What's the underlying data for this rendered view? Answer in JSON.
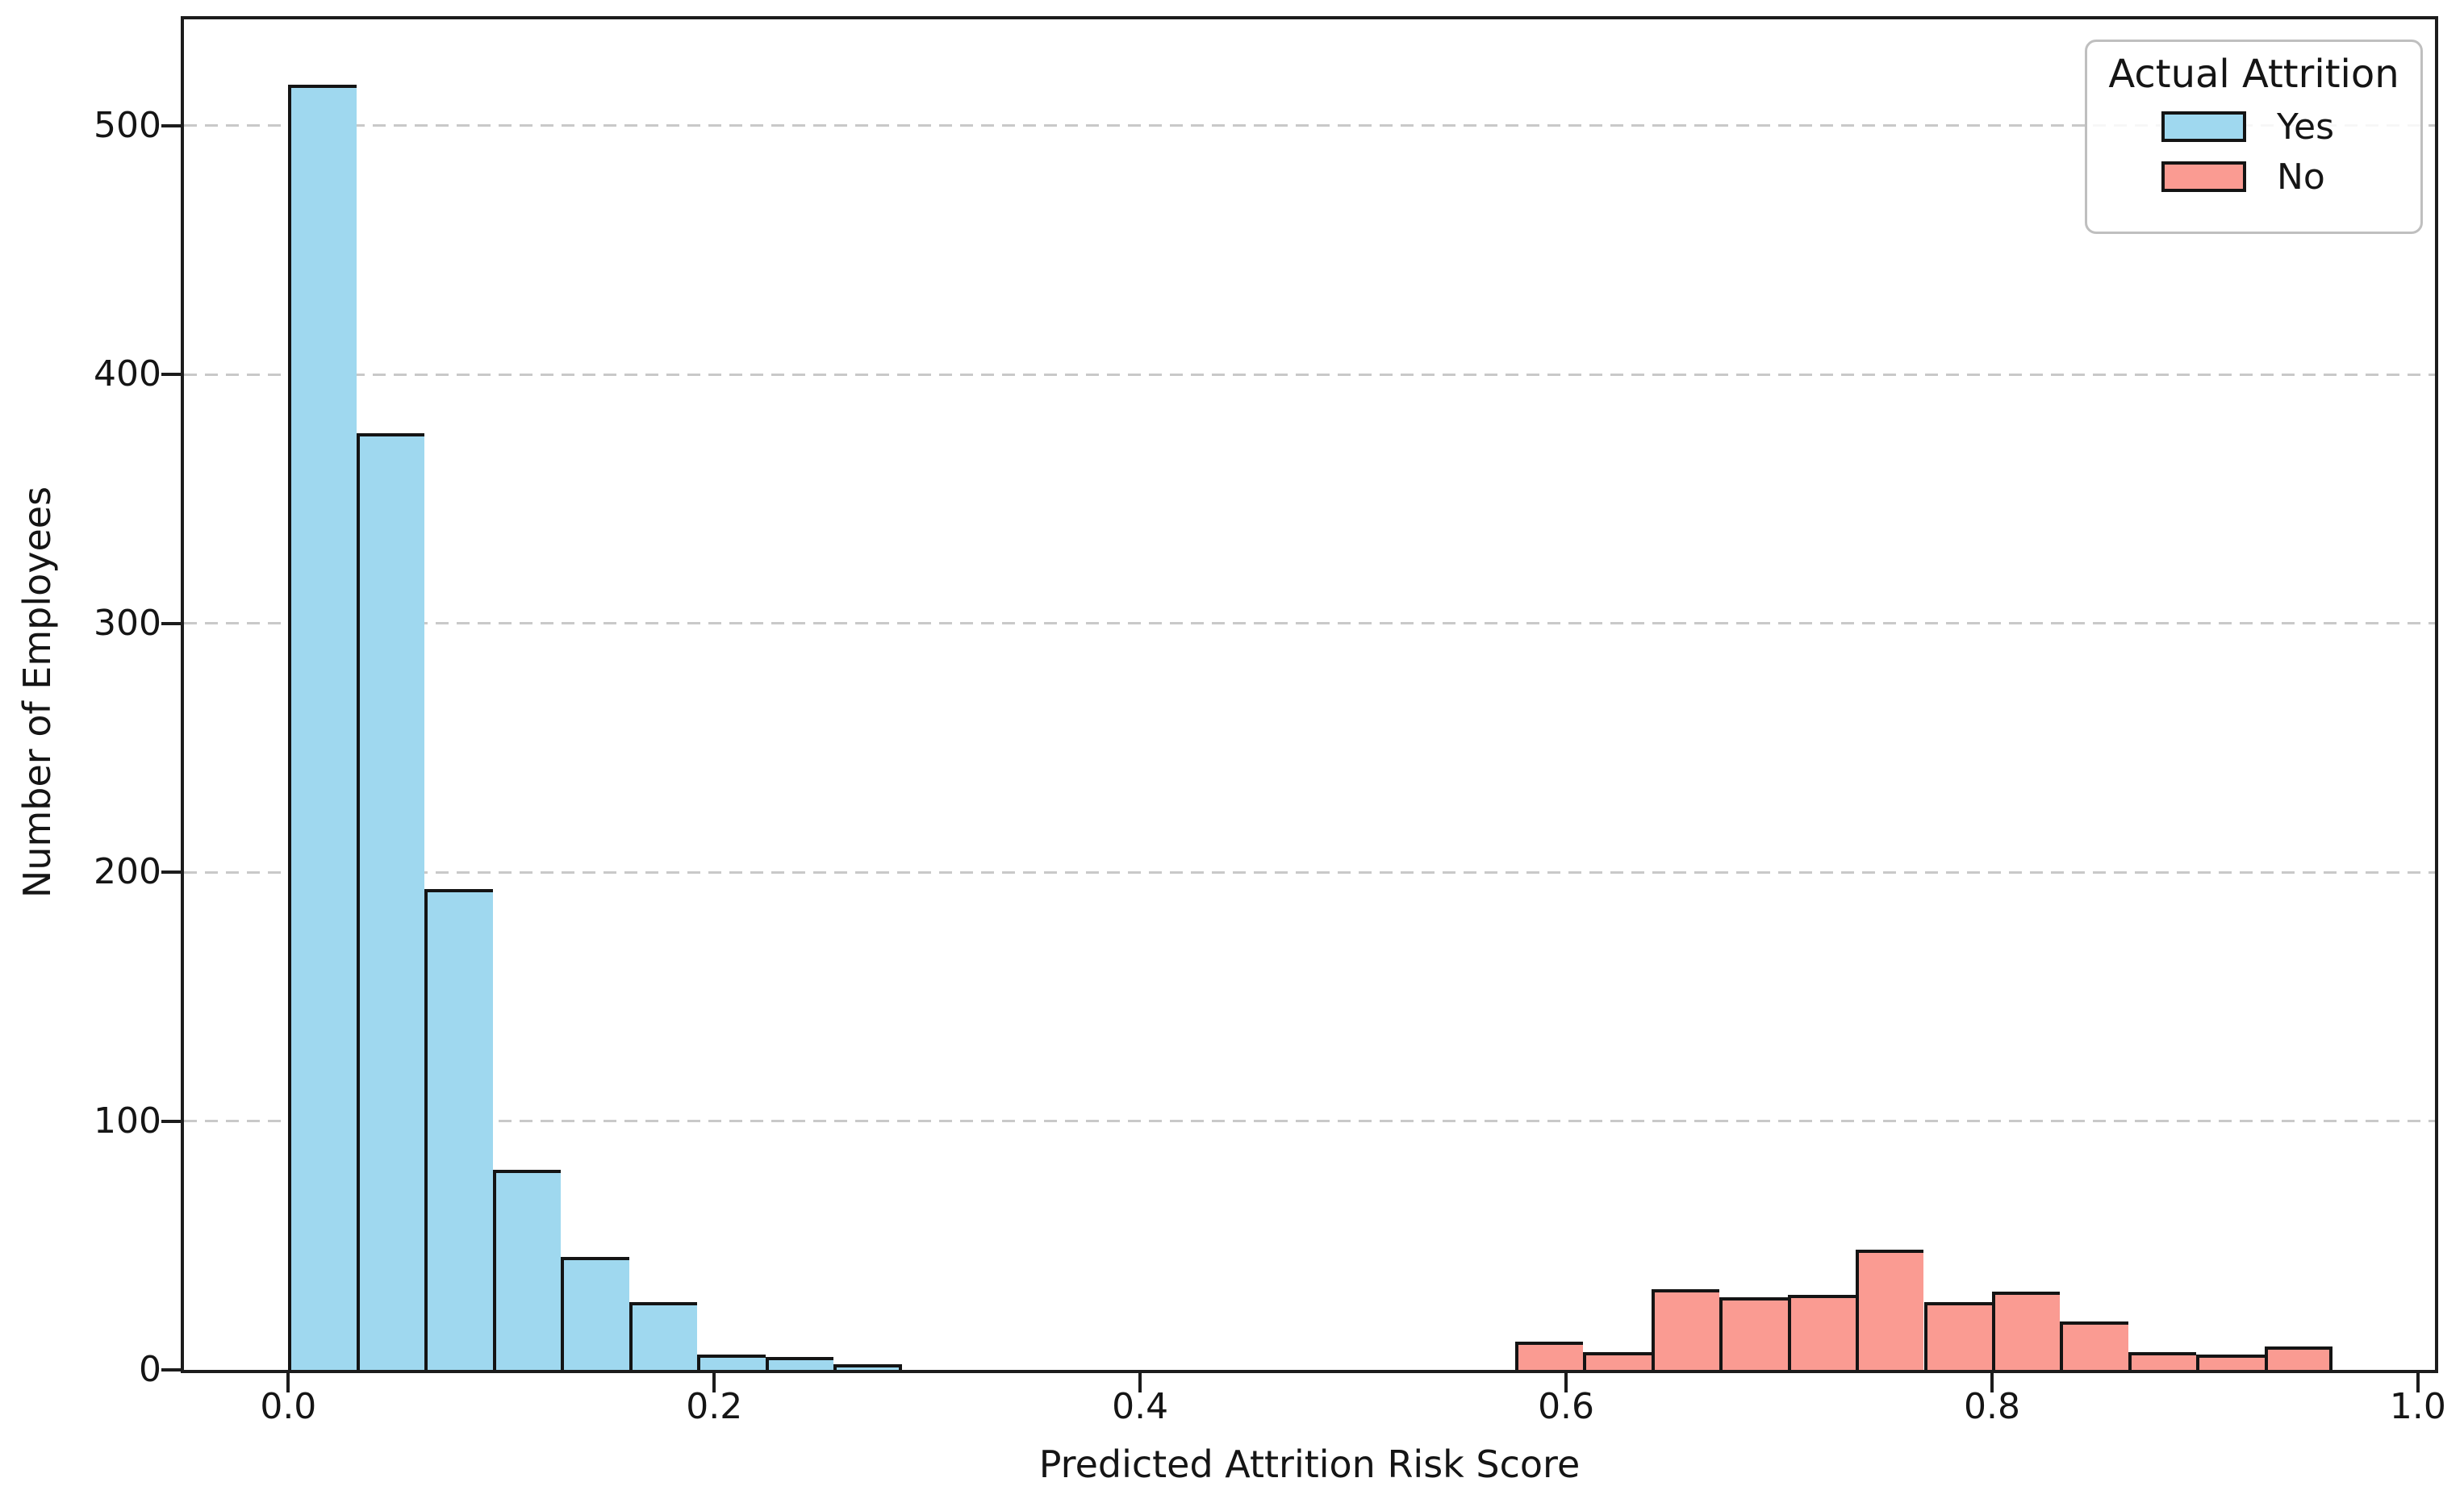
{
  "chart_data": {
    "type": "histogram",
    "title": "",
    "xlabel": "Predicted Attrition Risk Score",
    "ylabel": "Number of Employees",
    "xlim": [
      -0.049,
      1.008
    ],
    "ylim": [
      0,
      542.7
    ],
    "grid": "horizontal-dashed",
    "grid_color": "#c9c9c9",
    "x_ticks": [
      0.0,
      0.2,
      0.4,
      0.6,
      0.8,
      1.0
    ],
    "x_tick_labels": [
      "0.0",
      "0.2",
      "0.4",
      "0.6",
      "0.8",
      "1.0"
    ],
    "y_ticks": [
      0,
      100,
      200,
      300,
      400,
      500
    ],
    "y_tick_labels": [
      "0",
      "100",
      "200",
      "300",
      "400",
      "500"
    ],
    "bin_width": 0.032,
    "bar_edge_color": "#141414",
    "series": [
      {
        "name": "Yes",
        "fill_color": "#9FD8EF",
        "bins_start": 0.0,
        "bin_edges": [
          0.0,
          0.032,
          0.064,
          0.096,
          0.128,
          0.16,
          0.192,
          0.224,
          0.256,
          0.288
        ],
        "counts": [
          515,
          375,
          192,
          79,
          44,
          26,
          5,
          4,
          1
        ]
      },
      {
        "name": "No",
        "fill_color": "#FA9B92",
        "bins_start": 0.576,
        "bin_edges": [
          0.576,
          0.608,
          0.64,
          0.672,
          0.704,
          0.736,
          0.768,
          0.8,
          0.832,
          0.864,
          0.896,
          0.928,
          0.96
        ],
        "counts": [
          10,
          6,
          31,
          28,
          29,
          47,
          26,
          30,
          18,
          6,
          5,
          8
        ]
      }
    ],
    "legend": {
      "title": "Actual Attrition",
      "position": "upper-right",
      "entries": [
        {
          "label": "Yes",
          "color": "#9FD8EF"
        },
        {
          "label": "No",
          "color": "#FA9B92"
        }
      ]
    }
  }
}
